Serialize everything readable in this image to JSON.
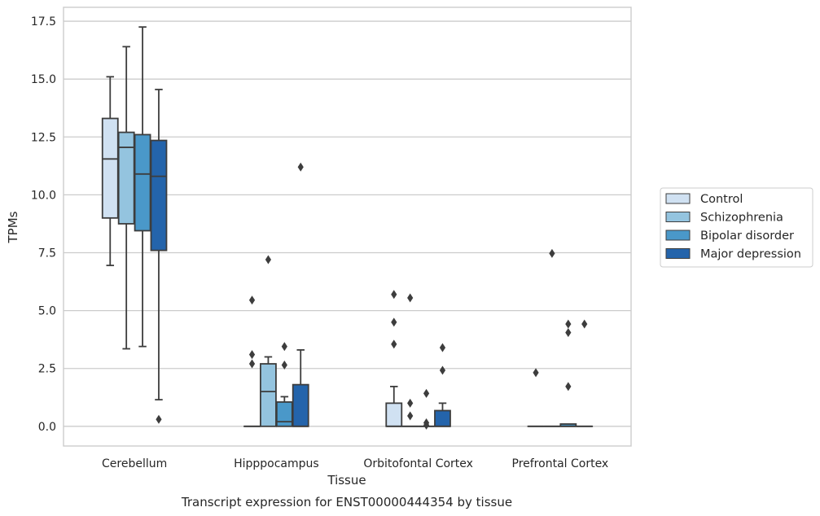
{
  "chart_data": {
    "type": "box",
    "caption": "Transcript expression for ENST00000444354 by tissue",
    "xlabel": "Tissue",
    "ylabel": "TPMs",
    "ylim": [
      -0.85,
      18.1
    ],
    "yticks": [
      0.0,
      2.5,
      5.0,
      7.5,
      10.0,
      12.5,
      15.0,
      17.5
    ],
    "ytick_labels": [
      "0.0",
      "2.5",
      "5.0",
      "7.5",
      "10.0",
      "12.5",
      "15.0",
      "17.5"
    ],
    "grid": "horizontal",
    "legend_position": "right",
    "categories": [
      "Cerebellum",
      "Hipppocampus",
      "Orbitofontal Cortex",
      "Prefrontal Cortex"
    ],
    "series": [
      {
        "name": "Control",
        "color": "#d0e1f2",
        "boxes": [
          {
            "whislo": 6.95,
            "q1": 9.0,
            "med": 11.55,
            "q3": 13.3,
            "whishi": 15.1,
            "fliers": []
          },
          {
            "whislo": 0,
            "q1": 0,
            "med": 0,
            "q3": 0,
            "whishi": 0,
            "fliers": [
              5.45,
              3.1,
              2.7
            ]
          },
          {
            "whislo": 0,
            "q1": 0,
            "med": 0,
            "q3": 1.0,
            "whishi": 1.72,
            "fliers": [
              5.7,
              4.5,
              3.55
            ]
          },
          {
            "whislo": 0,
            "q1": 0,
            "med": 0,
            "q3": 0,
            "whishi": 0,
            "fliers": [
              2.32
            ]
          }
        ]
      },
      {
        "name": "Schizophrenia",
        "color": "#94c4df",
        "boxes": [
          {
            "whislo": 3.35,
            "q1": 8.75,
            "med": 12.05,
            "q3": 12.7,
            "whishi": 16.4,
            "fliers": []
          },
          {
            "whislo": 0,
            "q1": 0,
            "med": 1.5,
            "q3": 2.7,
            "whishi": 3.0,
            "fliers": [
              7.2
            ]
          },
          {
            "whislo": 0,
            "q1": 0,
            "med": 0,
            "q3": 0,
            "whishi": 0,
            "fliers": [
              5.55,
              1.0,
              0.45
            ]
          },
          {
            "whislo": 0,
            "q1": 0,
            "med": 0,
            "q3": 0,
            "whishi": 0,
            "fliers": [
              7.47
            ]
          }
        ]
      },
      {
        "name": "Bipolar disorder",
        "color": "#4a98c9",
        "boxes": [
          {
            "whislo": 3.45,
            "q1": 8.45,
            "med": 10.9,
            "q3": 12.6,
            "whishi": 17.25,
            "fliers": []
          },
          {
            "whislo": 0,
            "q1": 0,
            "med": 0.2,
            "q3": 1.05,
            "whishi": 1.28,
            "fliers": [
              3.45,
              2.65
            ]
          },
          {
            "whislo": 0,
            "q1": 0,
            "med": 0,
            "q3": 0,
            "whishi": 0,
            "fliers": [
              1.42,
              0.15,
              0.05
            ]
          },
          {
            "whislo": 0,
            "q1": 0,
            "med": 0,
            "q3": 0.1,
            "whishi": 0.1,
            "fliers": [
              4.42,
              4.05,
              1.72
            ]
          }
        ]
      },
      {
        "name": "Major depression",
        "color": "#2464ab",
        "boxes": [
          {
            "whislo": 1.15,
            "q1": 7.6,
            "med": 10.8,
            "q3": 12.35,
            "whishi": 14.55,
            "fliers": [
              0.3
            ]
          },
          {
            "whislo": 0,
            "q1": 0,
            "med": 0,
            "q3": 1.8,
            "whishi": 3.3,
            "fliers": [
              11.2
            ]
          },
          {
            "whislo": 0,
            "q1": 0,
            "med": 0,
            "q3": 0.68,
            "whishi": 1.0,
            "fliers": [
              3.4,
              2.42
            ]
          },
          {
            "whislo": 0,
            "q1": 0,
            "med": 0,
            "q3": 0,
            "whishi": 0,
            "fliers": [
              4.42
            ]
          }
        ]
      }
    ]
  }
}
